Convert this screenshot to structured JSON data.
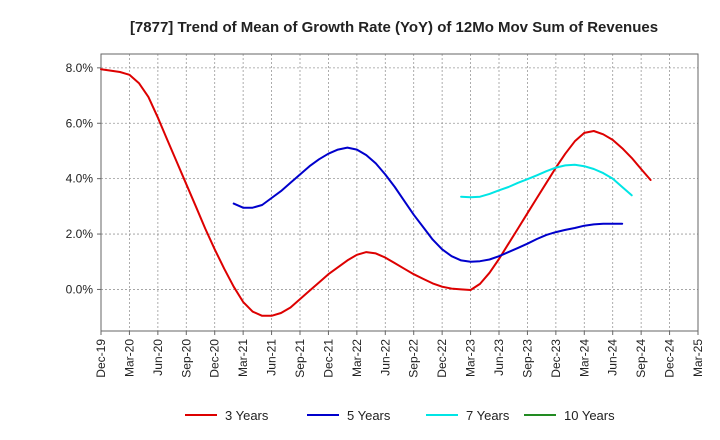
{
  "chart_data": {
    "type": "line",
    "title": "[7877]  Trend of Mean of Growth Rate (YoY) of 12Mo Mov Sum of Revenues",
    "xlabel": "",
    "ylabel": "",
    "ylim": [
      -1.5,
      8.5
    ],
    "yticks": [
      0,
      2,
      4,
      6,
      8
    ],
    "ytick_labels": [
      "0.0%",
      "2.0%",
      "4.0%",
      "6.0%",
      "8.0%"
    ],
    "x_categories": [
      "Dec-19",
      "Mar-20",
      "Jun-20",
      "Sep-20",
      "Dec-20",
      "Mar-21",
      "Jun-21",
      "Sep-21",
      "Dec-21",
      "Mar-22",
      "Jun-22",
      "Sep-22",
      "Dec-22",
      "Mar-23",
      "Jun-23",
      "Sep-23",
      "Dec-23",
      "Mar-24",
      "Jun-24",
      "Sep-24",
      "Dec-24",
      "Mar-25"
    ],
    "grid": true,
    "legend_position": "bottom",
    "series": [
      {
        "name": "3 Years",
        "color": "#dd0000",
        "points": [
          [
            0,
            7.95
          ],
          [
            0.333,
            7.9
          ],
          [
            0.667,
            7.85
          ],
          [
            1,
            7.75
          ],
          [
            1.333,
            7.45
          ],
          [
            1.667,
            6.95
          ],
          [
            2,
            6.2
          ],
          [
            2.333,
            5.4
          ],
          [
            2.667,
            4.6
          ],
          [
            3,
            3.8
          ],
          [
            3.333,
            3.0
          ],
          [
            3.667,
            2.2
          ],
          [
            4,
            1.45
          ],
          [
            4.333,
            0.75
          ],
          [
            4.667,
            0.1
          ],
          [
            5,
            -0.45
          ],
          [
            5.333,
            -0.8
          ],
          [
            5.667,
            -0.95
          ],
          [
            6,
            -0.95
          ],
          [
            6.333,
            -0.85
          ],
          [
            6.667,
            -0.65
          ],
          [
            7,
            -0.35
          ],
          [
            7.333,
            -0.05
          ],
          [
            7.667,
            0.25
          ],
          [
            8,
            0.55
          ],
          [
            8.333,
            0.8
          ],
          [
            8.667,
            1.05
          ],
          [
            9,
            1.25
          ],
          [
            9.333,
            1.35
          ],
          [
            9.667,
            1.3
          ],
          [
            10,
            1.15
          ],
          [
            10.333,
            0.95
          ],
          [
            10.667,
            0.75
          ],
          [
            11,
            0.55
          ],
          [
            11.333,
            0.38
          ],
          [
            11.667,
            0.22
          ],
          [
            12,
            0.1
          ],
          [
            12.333,
            0.03
          ],
          [
            12.667,
            0.0
          ],
          [
            13,
            -0.02
          ],
          [
            13.333,
            0.2
          ],
          [
            13.667,
            0.6
          ],
          [
            14,
            1.1
          ],
          [
            14.333,
            1.65
          ],
          [
            14.667,
            2.2
          ],
          [
            15,
            2.75
          ],
          [
            15.333,
            3.3
          ],
          [
            15.667,
            3.85
          ],
          [
            16,
            4.4
          ],
          [
            16.333,
            4.9
          ],
          [
            16.667,
            5.35
          ],
          [
            17,
            5.65
          ],
          [
            17.333,
            5.72
          ],
          [
            17.667,
            5.6
          ],
          [
            18,
            5.4
          ],
          [
            18.333,
            5.1
          ],
          [
            18.667,
            4.75
          ],
          [
            19,
            4.35
          ],
          [
            19.333,
            3.95
          ]
        ]
      },
      {
        "name": "5 Years",
        "color": "#0000cc",
        "points": [
          [
            4.667,
            3.1
          ],
          [
            5,
            2.95
          ],
          [
            5.333,
            2.95
          ],
          [
            5.667,
            3.05
          ],
          [
            6,
            3.3
          ],
          [
            6.333,
            3.55
          ],
          [
            6.667,
            3.85
          ],
          [
            7,
            4.15
          ],
          [
            7.333,
            4.45
          ],
          [
            7.667,
            4.7
          ],
          [
            8,
            4.9
          ],
          [
            8.333,
            5.05
          ],
          [
            8.667,
            5.12
          ],
          [
            9,
            5.05
          ],
          [
            9.333,
            4.85
          ],
          [
            9.667,
            4.55
          ],
          [
            10,
            4.15
          ],
          [
            10.333,
            3.7
          ],
          [
            10.667,
            3.2
          ],
          [
            11,
            2.7
          ],
          [
            11.333,
            2.25
          ],
          [
            11.667,
            1.8
          ],
          [
            12,
            1.45
          ],
          [
            12.333,
            1.2
          ],
          [
            12.667,
            1.05
          ],
          [
            13,
            1.0
          ],
          [
            13.333,
            1.02
          ],
          [
            13.667,
            1.08
          ],
          [
            14,
            1.2
          ],
          [
            14.333,
            1.35
          ],
          [
            14.667,
            1.5
          ],
          [
            15,
            1.65
          ],
          [
            15.333,
            1.82
          ],
          [
            15.667,
            1.97
          ],
          [
            16,
            2.07
          ],
          [
            16.333,
            2.15
          ],
          [
            16.667,
            2.22
          ],
          [
            17,
            2.3
          ],
          [
            17.333,
            2.35
          ],
          [
            17.667,
            2.37
          ],
          [
            18,
            2.37
          ],
          [
            18.333,
            2.37
          ]
        ]
      },
      {
        "name": "7 Years",
        "color": "#00e5e5",
        "points": [
          [
            12.667,
            3.35
          ],
          [
            13,
            3.33
          ],
          [
            13.333,
            3.35
          ],
          [
            13.667,
            3.45
          ],
          [
            14,
            3.58
          ],
          [
            14.333,
            3.7
          ],
          [
            14.667,
            3.85
          ],
          [
            15,
            3.98
          ],
          [
            15.333,
            4.12
          ],
          [
            15.667,
            4.27
          ],
          [
            16,
            4.4
          ],
          [
            16.333,
            4.48
          ],
          [
            16.667,
            4.5
          ],
          [
            17,
            4.45
          ],
          [
            17.333,
            4.35
          ],
          [
            17.667,
            4.2
          ],
          [
            18,
            4.0
          ],
          [
            18.333,
            3.7
          ],
          [
            18.667,
            3.4
          ]
        ]
      },
      {
        "name": "10 Years",
        "color": "#228b22",
        "points": []
      }
    ]
  }
}
